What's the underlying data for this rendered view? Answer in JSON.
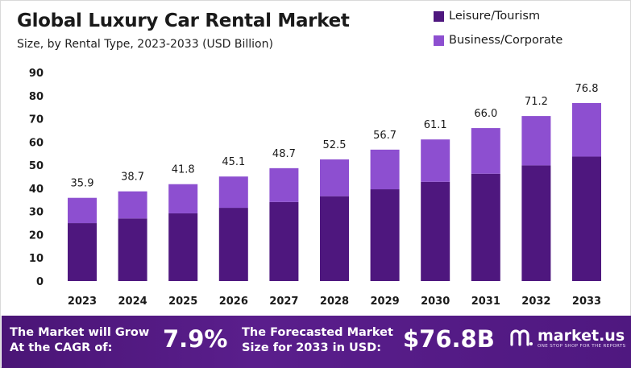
{
  "header": {
    "title": "Global Luxury Car Rental Market",
    "subtitle": "Size, by Rental Type, 2023-2033 (USD Billion)"
  },
  "colors": {
    "leisure": "#4e177e",
    "business": "#8d4fd0",
    "footer_bg": "#4f1880"
  },
  "chart_data": {
    "type": "bar",
    "stacked": true,
    "categories": [
      "2023",
      "2024",
      "2025",
      "2026",
      "2027",
      "2028",
      "2029",
      "2030",
      "2031",
      "2032",
      "2033"
    ],
    "series": [
      {
        "name": "Leisure/Tourism",
        "values": [
          25.0,
          27.0,
          29.2,
          31.6,
          34.1,
          36.6,
          39.6,
          42.8,
          46.3,
          49.9,
          53.7
        ]
      },
      {
        "name": "Business/Corporate",
        "values": [
          10.9,
          11.7,
          12.6,
          13.5,
          14.6,
          15.9,
          17.1,
          18.3,
          19.7,
          21.3,
          23.1
        ]
      }
    ],
    "totals": [
      "35.9",
      "38.7",
      "41.8",
      "45.1",
      "48.7",
      "52.5",
      "56.7",
      "61.1",
      "66.0",
      "71.2",
      "76.8"
    ],
    "ylim": [
      0,
      90
    ],
    "yticks": [
      "0",
      "10",
      "20",
      "30",
      "40",
      "50",
      "60",
      "70",
      "80",
      "90"
    ],
    "grid": false,
    "legend_position": "top-right"
  },
  "footer": {
    "cagr_label_line1": "The Market will Grow",
    "cagr_label_line2": "At the CAGR of:",
    "cagr_value": "7.9%",
    "forecast_label_line1": "The Forecasted Market",
    "forecast_label_line2": "Size for 2033 in USD:",
    "forecast_value": "$76.8B",
    "brand_name": "market.us",
    "brand_tagline": "ONE STOP SHOP FOR THE REPORTS"
  }
}
